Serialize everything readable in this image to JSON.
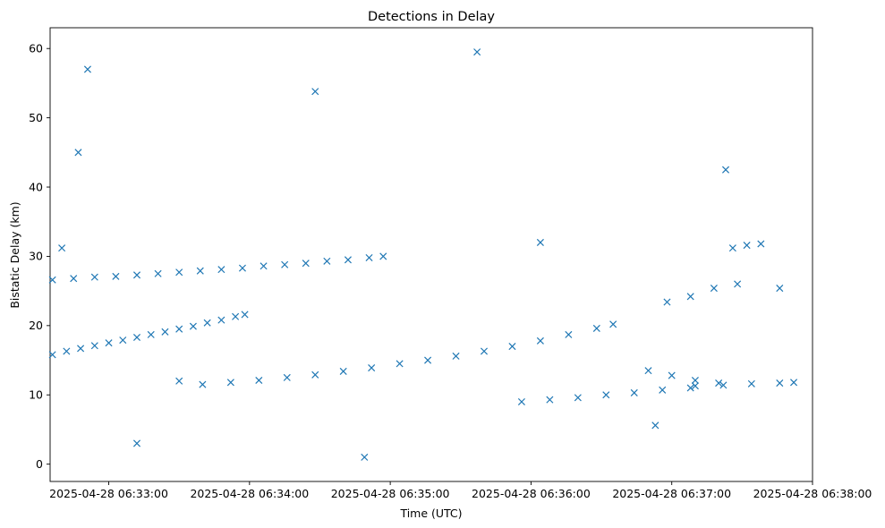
{
  "chart_data": {
    "type": "scatter",
    "title": "Detections in Delay",
    "xlabel": "Time (UTC)",
    "ylabel": "Bistatic Delay (km)",
    "x_unit": "UTC time",
    "xlim": [
      "2025-04-28 06:32:35",
      "2025-04-28 06:38:00"
    ],
    "ylim": [
      -2.5,
      63
    ],
    "x_ticks": [
      "2025-04-28 06:33:00",
      "2025-04-28 06:34:00",
      "2025-04-28 06:35:00",
      "2025-04-28 06:36:00",
      "2025-04-28 06:37:00",
      "2025-04-28 06:38:00"
    ],
    "y_ticks": [
      0,
      10,
      20,
      30,
      40,
      50,
      60
    ],
    "marker": "x",
    "color": "#1f77b4",
    "grid": false,
    "legend": "none",
    "series": [
      {
        "points": [
          [
            "2025-04-28 06:32:36",
            15.8
          ],
          [
            "2025-04-28 06:32:42",
            16.3
          ],
          [
            "2025-04-28 06:32:48",
            16.7
          ],
          [
            "2025-04-28 06:32:54",
            17.1
          ],
          [
            "2025-04-28 06:33:00",
            17.5
          ],
          [
            "2025-04-28 06:33:06",
            17.9
          ],
          [
            "2025-04-28 06:33:12",
            18.3
          ],
          [
            "2025-04-28 06:33:18",
            18.7
          ],
          [
            "2025-04-28 06:33:24",
            19.1
          ],
          [
            "2025-04-28 06:33:30",
            19.5
          ],
          [
            "2025-04-28 06:33:36",
            19.9
          ],
          [
            "2025-04-28 06:33:42",
            20.4
          ],
          [
            "2025-04-28 06:33:48",
            20.8
          ],
          [
            "2025-04-28 06:33:54",
            21.3
          ],
          [
            "2025-04-28 06:33:58",
            21.6
          ],
          [
            "2025-04-28 06:32:36",
            26.6
          ],
          [
            "2025-04-28 06:32:45",
            26.8
          ],
          [
            "2025-04-28 06:32:54",
            27.0
          ],
          [
            "2025-04-28 06:33:03",
            27.1
          ],
          [
            "2025-04-28 06:33:12",
            27.3
          ],
          [
            "2025-04-28 06:33:21",
            27.5
          ],
          [
            "2025-04-28 06:33:30",
            27.7
          ],
          [
            "2025-04-28 06:33:39",
            27.9
          ],
          [
            "2025-04-28 06:33:48",
            28.1
          ],
          [
            "2025-04-28 06:33:57",
            28.3
          ],
          [
            "2025-04-28 06:34:06",
            28.6
          ],
          [
            "2025-04-28 06:34:15",
            28.8
          ],
          [
            "2025-04-28 06:34:24",
            29.0
          ],
          [
            "2025-04-28 06:34:33",
            29.3
          ],
          [
            "2025-04-28 06:34:42",
            29.5
          ],
          [
            "2025-04-28 06:34:51",
            29.8
          ],
          [
            "2025-04-28 06:34:57",
            30.0
          ],
          [
            "2025-04-28 06:33:40",
            11.5
          ],
          [
            "2025-04-28 06:33:52",
            11.8
          ],
          [
            "2025-04-28 06:34:04",
            12.1
          ],
          [
            "2025-04-28 06:34:16",
            12.5
          ],
          [
            "2025-04-28 06:34:28",
            12.9
          ],
          [
            "2025-04-28 06:34:40",
            13.4
          ],
          [
            "2025-04-28 06:34:52",
            13.9
          ],
          [
            "2025-04-28 06:35:04",
            14.5
          ],
          [
            "2025-04-28 06:35:16",
            15.0
          ],
          [
            "2025-04-28 06:35:28",
            15.6
          ],
          [
            "2025-04-28 06:35:40",
            16.3
          ],
          [
            "2025-04-28 06:35:52",
            17.0
          ],
          [
            "2025-04-28 06:36:04",
            17.8
          ],
          [
            "2025-04-28 06:36:16",
            18.7
          ],
          [
            "2025-04-28 06:36:28",
            19.6
          ],
          [
            "2025-04-28 06:36:35",
            20.2
          ],
          [
            "2025-04-28 06:35:56",
            9.0
          ],
          [
            "2025-04-28 06:36:08",
            9.3
          ],
          [
            "2025-04-28 06:36:20",
            9.6
          ],
          [
            "2025-04-28 06:36:32",
            10.0
          ],
          [
            "2025-04-28 06:36:44",
            10.3
          ],
          [
            "2025-04-28 06:36:56",
            10.7
          ],
          [
            "2025-04-28 06:37:08",
            11.0
          ],
          [
            "2025-04-28 06:37:10",
            11.3
          ],
          [
            "2025-04-28 06:37:22",
            11.4
          ],
          [
            "2025-04-28 06:37:34",
            11.6
          ],
          [
            "2025-04-28 06:37:46",
            11.7
          ],
          [
            "2025-04-28 06:37:52",
            11.8
          ],
          [
            "2025-04-28 06:36:50",
            13.5
          ],
          [
            "2025-04-28 06:37:00",
            12.8
          ],
          [
            "2025-04-28 06:37:10",
            12.1
          ],
          [
            "2025-04-28 06:37:20",
            11.7
          ],
          [
            "2025-04-28 06:36:58",
            23.4
          ],
          [
            "2025-04-28 06:37:08",
            24.2
          ],
          [
            "2025-04-28 06:37:18",
            25.4
          ],
          [
            "2025-04-28 06:37:28",
            26.0
          ],
          [
            "2025-04-28 06:37:26",
            31.2
          ],
          [
            "2025-04-28 06:37:32",
            31.6
          ],
          [
            "2025-04-28 06:37:38",
            31.8
          ],
          [
            "2025-04-28 06:32:40",
            31.2
          ],
          [
            "2025-04-28 06:32:51",
            57.0
          ],
          [
            "2025-04-28 06:32:47",
            45.0
          ],
          [
            "2025-04-28 06:33:30",
            12.0
          ],
          [
            "2025-04-28 06:34:49",
            1.0
          ],
          [
            "2025-04-28 06:35:37",
            59.5
          ],
          [
            "2025-04-28 06:36:04",
            32.0
          ],
          [
            "2025-04-28 06:37:23",
            42.5
          ],
          [
            "2025-04-28 06:37:46",
            25.4
          ],
          [
            "2025-04-28 06:36:53",
            5.6
          ],
          [
            "2025-04-28 06:34:28",
            53.8
          ],
          [
            "2025-04-28 06:33:12",
            3.0
          ]
        ]
      }
    ]
  }
}
